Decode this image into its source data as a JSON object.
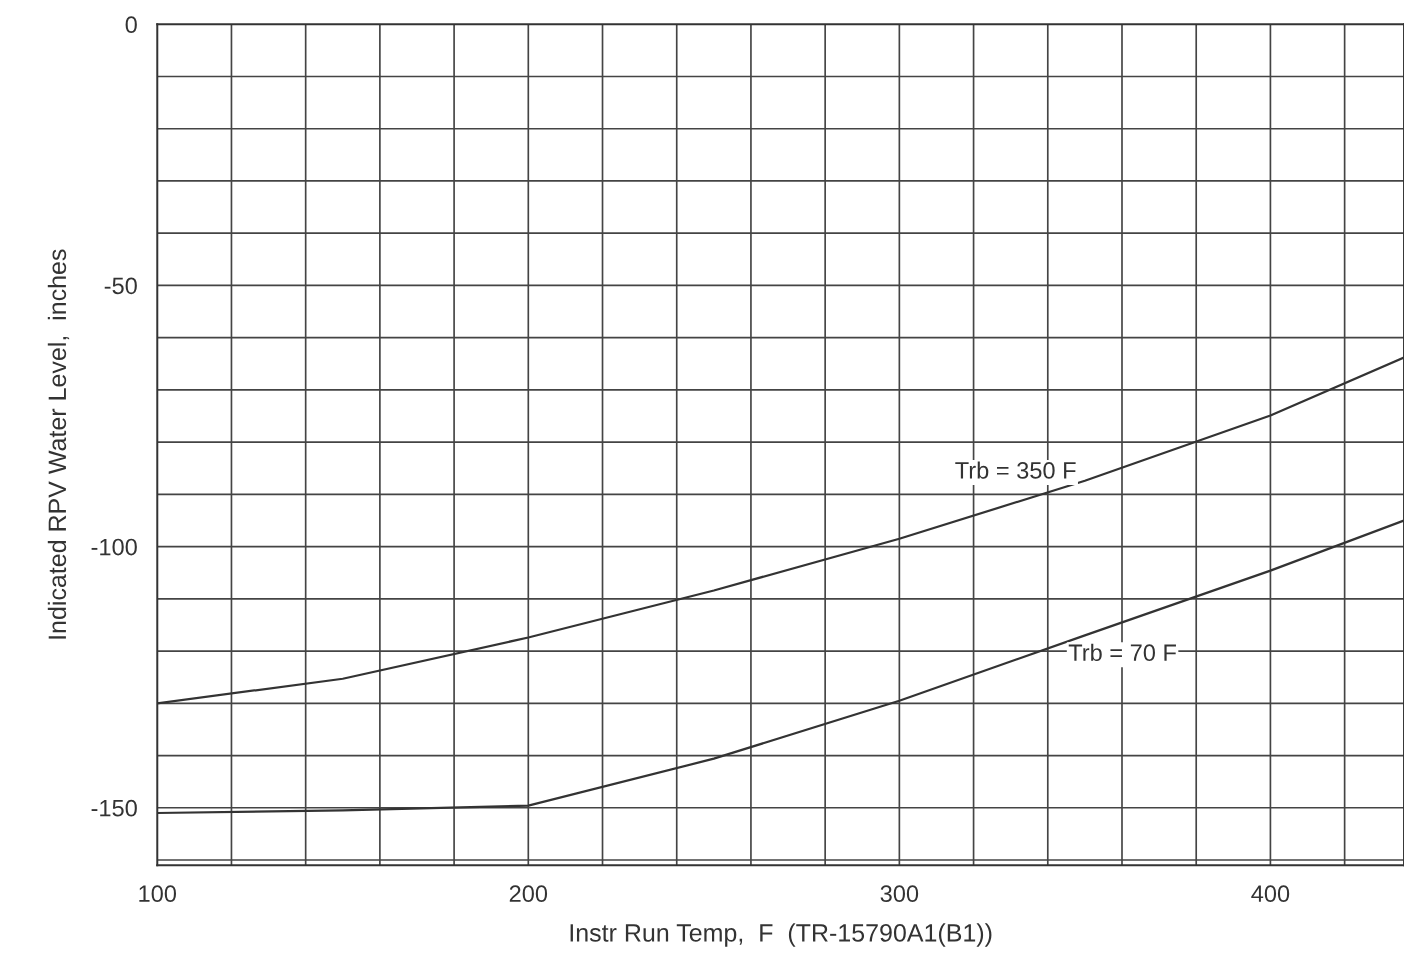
{
  "chart_data": {
    "type": "line",
    "xlabel": "Instr Run Temp,  F  (TR-15790A1(B1))",
    "ylabel": "Indicated RPV Water Level,  inches",
    "xlim": [
      100,
      436
    ],
    "ylim": [
      -161,
      0
    ],
    "xticks": [
      100,
      {
        "value": 120,
        "label": null
      },
      {
        "value": 140,
        "label": null
      },
      {
        "value": 160,
        "label": null
      },
      {
        "value": 180,
        "label": null
      },
      200,
      {
        "value": 220,
        "label": null
      },
      {
        "value": 240,
        "label": null
      },
      {
        "value": 260,
        "label": null
      },
      {
        "value": 280,
        "label": null
      },
      300,
      {
        "value": 320,
        "label": null
      },
      {
        "value": 340,
        "label": null
      },
      {
        "value": 360,
        "label": null
      },
      {
        "value": 380,
        "label": null
      },
      400,
      {
        "value": 420,
        "label": null
      }
    ],
    "yticks": [
      {
        "value": -160,
        "label": null
      },
      -150,
      {
        "value": -140,
        "label": null
      },
      {
        "value": -130,
        "label": null
      },
      {
        "value": -120,
        "label": null
      },
      {
        "value": -110,
        "label": null
      },
      -100,
      {
        "value": -90,
        "label": null
      },
      {
        "value": -80,
        "label": null
      },
      {
        "value": -70,
        "label": null
      },
      {
        "value": -60,
        "label": null
      },
      -50,
      {
        "value": -40,
        "label": null
      },
      {
        "value": -30,
        "label": null
      },
      {
        "value": -20,
        "label": null
      },
      {
        "value": -10,
        "label": null
      },
      0
    ],
    "grid": true,
    "marker": "none",
    "line_style": "solid",
    "x": [
      100,
      150,
      200,
      250,
      300,
      350,
      400,
      436
    ],
    "series": [
      {
        "name": "Trb = 350 F",
        "color": "#333333",
        "values": [
          -130,
          -125.3,
          -117.4,
          -108.4,
          -98.5,
          -87.4,
          -74.9,
          -63.8
        ]
      },
      {
        "name": "Trb = 70 F",
        "color": "#333333",
        "values": [
          -151,
          -150.5,
          -149.6,
          -140.6,
          -129.5,
          -117,
          -104.6,
          -95
        ]
      }
    ]
  }
}
